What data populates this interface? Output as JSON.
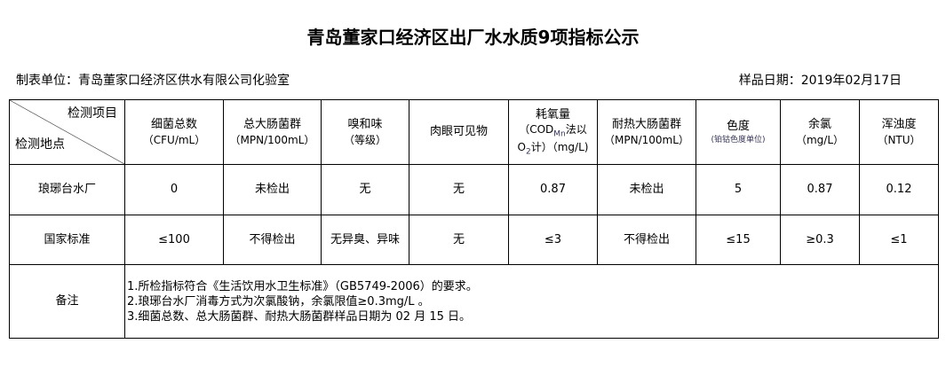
{
  "title": "青岛董家口经济区出厂水水质9项指标公示",
  "unit": "制表单位：青岛董家口经济区供水有限公司化验室",
  "date": "样品日期：2019年02月17日",
  "corner": {
    "item": "检测项目",
    "site": "检测地点"
  },
  "headers": [
    {
      "name": "细菌总数",
      "unit": "（CFU/mL）"
    },
    {
      "name": "总大肠菌群",
      "unit": "（MPN/100mL）"
    },
    {
      "name": "嗅和味",
      "unit": "（等级）"
    },
    {
      "name": "肉眼可见物",
      "unit": ""
    },
    {
      "name": "耗氧量",
      "unit": "（COD",
      "sub": "Mn",
      "unit2": "法以",
      "unit3": "O",
      "sub2": "2",
      "unit4": "计）（mg/L)"
    },
    {
      "name": "耐热大肠菌群",
      "unit": "（MPN/100mL）"
    },
    {
      "name": "色度",
      "unit": "(铂钴色度单位)"
    },
    {
      "name": "余氯",
      "unit": "（mg/L）"
    },
    {
      "name": "浑浊度",
      "unit": "（NTU）"
    }
  ],
  "rows": [
    {
      "label": "琅琊台水厂",
      "values": [
        "0",
        "未检出",
        "无",
        "无",
        "0.87",
        "未检出",
        "5",
        "0.87",
        "0.12"
      ]
    },
    {
      "label": "国家标准",
      "values": [
        "≤100",
        "不得检出",
        "无异臭、异味",
        "无",
        "≤3",
        "不得检出",
        "≤15",
        "≥0.3",
        "≤1"
      ]
    }
  ],
  "notes": {
    "label": "备注",
    "lines": [
      "1.所检指标符合《生活饮用水卫生标准》（GB5749-2006）的要求。",
      "2.琅琊台水厂消毒方式为次氯酸钠，余氯限值≥0.3mg/L 。",
      "3.细菌总数、总大肠菌群、耐热大肠菌群样品日期为 02 月 15 日。"
    ]
  }
}
